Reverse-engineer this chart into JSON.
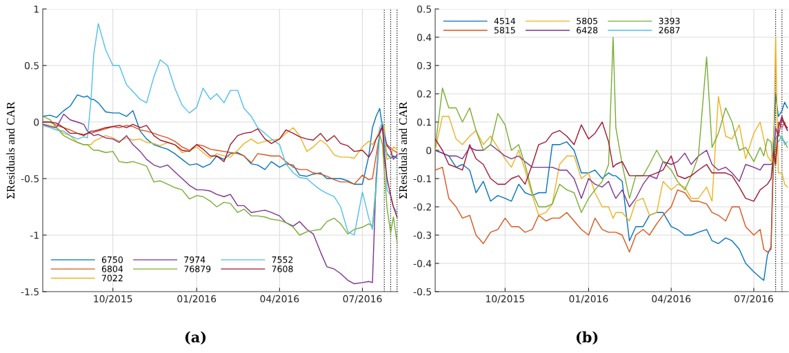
{
  "chart_data": [
    {
      "type": "line",
      "ylabel": "ΣResiduals and CAR",
      "annotations": [
        "(a)"
      ],
      "grid": true,
      "legend": "bottom left",
      "line_style": "solid",
      "marker": "none",
      "x": [
        "2015-07-16",
        "2015-07-24",
        "2015-07-31",
        "2015-08-08",
        "2015-08-15",
        "2015-08-23",
        "2015-08-30",
        "2015-09-03",
        "2015-09-07",
        "2015-09-10",
        "2015-09-15",
        "2015-09-23",
        "2015-10-01",
        "2015-10-08",
        "2015-10-16",
        "2015-10-23",
        "2015-10-31",
        "2015-11-07",
        "2015-11-15",
        "2015-11-22",
        "2015-11-30",
        "2015-12-08",
        "2015-12-16",
        "2015-12-24",
        "2016-01-01",
        "2016-01-08",
        "2016-01-16",
        "2016-01-23",
        "2016-01-31",
        "2016-02-07",
        "2016-02-15",
        "2016-02-22",
        "2016-03-01",
        "2016-03-08",
        "2016-03-16",
        "2016-03-23",
        "2016-04-01",
        "2016-04-08",
        "2016-04-16",
        "2016-04-23",
        "2016-05-01",
        "2016-05-08",
        "2016-05-16",
        "2016-05-23",
        "2016-05-31",
        "2016-06-07",
        "2016-06-15",
        "2016-06-22",
        "2016-07-01",
        "2016-07-08",
        "2016-07-12",
        "2016-07-16",
        "2016-07-20",
        "2016-07-23",
        "2016-07-25",
        "2016-07-28",
        "2016-08-01",
        "2016-08-04",
        "2016-08-08"
      ],
      "xlim": [
        "2015-07-16",
        "2016-08-09"
      ],
      "xticks": [
        {
          "value": "2015-10-01",
          "label": "10/2015"
        },
        {
          "value": "2016-01-01",
          "label": "01/2016"
        },
        {
          "value": "2016-04-01",
          "label": "04/2016"
        },
        {
          "value": "2016-07-01",
          "label": "07/2016"
        }
      ],
      "ylim": [
        -1.5,
        1
      ],
      "yticks": [
        -1.5,
        -1,
        -0.5,
        0,
        0.5,
        1
      ],
      "ref_lines": [
        {
          "axis": "x",
          "value": "2016-07-25",
          "color": "#000000",
          "line_style": "dotted"
        },
        {
          "axis": "x",
          "value": "2016-08-01",
          "color": "#000000",
          "line_style": "dotted"
        },
        {
          "axis": "x",
          "value": "2016-08-08",
          "color": "#000000",
          "line_style": "dotted"
        }
      ],
      "series": [
        {
          "name": "6750",
          "color": "#0072bd",
          "values": [
            0.05,
            0.06,
            0.04,
            0.1,
            0.14,
            0.24,
            0.22,
            0.23,
            0.2,
            0.2,
            0.17,
            0.09,
            0.08,
            0.08,
            0.05,
            0.1,
            -0.08,
            -0.15,
            -0.2,
            -0.22,
            -0.24,
            -0.28,
            -0.33,
            -0.38,
            -0.37,
            -0.4,
            -0.37,
            -0.3,
            -0.33,
            -0.28,
            -0.27,
            -0.3,
            -0.37,
            -0.38,
            -0.42,
            -0.35,
            -0.4,
            -0.37,
            -0.38,
            -0.47,
            -0.48,
            -0.46,
            -0.45,
            -0.5,
            -0.5,
            -0.5,
            -0.52,
            -0.55,
            -0.55,
            -0.3,
            -0.05,
            0.05,
            0.12,
            -0.05,
            -0.2,
            -0.28,
            -0.32,
            -0.3,
            -0.32
          ]
        },
        {
          "name": "6804",
          "color": "#d95319",
          "values": [
            0.0,
            0.0,
            -0.03,
            -0.05,
            -0.07,
            -0.1,
            -0.11,
            -0.1,
            -0.1,
            -0.09,
            -0.08,
            -0.06,
            -0.04,
            -0.05,
            -0.03,
            -0.04,
            -0.07,
            -0.08,
            -0.1,
            -0.12,
            -0.14,
            -0.17,
            -0.22,
            -0.25,
            -0.2,
            -0.21,
            -0.24,
            -0.25,
            -0.26,
            -0.27,
            -0.28,
            -0.3,
            -0.36,
            -0.28,
            -0.29,
            -0.3,
            -0.3,
            -0.35,
            -0.4,
            -0.42,
            -0.42,
            -0.45,
            -0.46,
            -0.48,
            -0.51,
            -0.53,
            -0.53,
            -0.55,
            -0.47,
            -0.51,
            -0.5,
            -0.3,
            -0.1,
            -0.05,
            -0.15,
            -0.2,
            -0.23,
            -0.25,
            -0.27
          ]
        },
        {
          "name": "7022",
          "color": "#edb120",
          "values": [
            -0.02,
            -0.03,
            -0.05,
            -0.1,
            -0.12,
            -0.18,
            -0.2,
            -0.2,
            -0.2,
            -0.17,
            -0.15,
            -0.12,
            -0.14,
            -0.17,
            -0.14,
            -0.16,
            -0.15,
            -0.18,
            -0.19,
            -0.21,
            -0.18,
            -0.2,
            -0.27,
            -0.25,
            -0.22,
            -0.27,
            -0.32,
            -0.28,
            -0.3,
            -0.31,
            -0.25,
            -0.19,
            -0.15,
            -0.19,
            -0.17,
            -0.16,
            -0.15,
            -0.1,
            -0.05,
            -0.12,
            -0.26,
            -0.22,
            -0.16,
            -0.2,
            -0.29,
            -0.31,
            -0.31,
            -0.32,
            -0.22,
            -0.17,
            -0.2,
            -0.15,
            -0.07,
            -0.05,
            -0.03,
            -0.33,
            -0.31,
            -0.22,
            -0.24
          ]
        },
        {
          "name": "7974",
          "color": "#7e2f8e",
          "values": [
            -0.02,
            -0.04,
            -0.05,
            0.07,
            0.02,
            0.0,
            -0.02,
            -0.08,
            -0.1,
            -0.12,
            -0.11,
            -0.14,
            -0.15,
            -0.18,
            -0.12,
            -0.2,
            -0.26,
            -0.33,
            -0.38,
            -0.4,
            -0.38,
            -0.44,
            -0.5,
            -0.56,
            -0.6,
            -0.6,
            -0.61,
            -0.64,
            -0.66,
            -0.64,
            -0.74,
            -0.74,
            -0.8,
            -0.79,
            -0.78,
            -0.8,
            -0.83,
            -0.89,
            -0.92,
            -0.88,
            -0.95,
            -0.99,
            -1.15,
            -1.28,
            -1.3,
            -1.34,
            -1.4,
            -1.43,
            -1.42,
            -1.41,
            -1.42,
            -0.5,
            -0.07,
            -0.05,
            -0.1,
            -0.21,
            -0.25,
            -0.33,
            -0.29
          ]
        },
        {
          "name": "76879",
          "color": "#77ac30",
          "values": [
            0.05,
            0.02,
            -0.05,
            -0.12,
            -0.15,
            -0.18,
            -0.2,
            -0.2,
            -0.23,
            -0.25,
            -0.25,
            -0.27,
            -0.26,
            -0.35,
            -0.36,
            -0.35,
            -0.37,
            -0.39,
            -0.53,
            -0.52,
            -0.55,
            -0.58,
            -0.6,
            -0.68,
            -0.65,
            -0.66,
            -0.7,
            -0.75,
            -0.71,
            -0.72,
            -0.8,
            -0.77,
            -0.83,
            -0.83,
            -0.84,
            -0.86,
            -0.87,
            -0.89,
            -0.93,
            -1.0,
            -0.97,
            -0.96,
            -0.95,
            -0.88,
            -0.85,
            -0.9,
            -0.99,
            -0.95,
            -0.93,
            -0.9,
            -0.92,
            -0.55,
            -0.11,
            -0.2,
            -0.43,
            -0.76,
            -0.98,
            -0.84,
            -1.06
          ]
        },
        {
          "name": "7552",
          "color": "#4dbeee",
          "values": [
            -0.03,
            -0.05,
            -0.07,
            -0.08,
            -0.12,
            -0.15,
            -0.13,
            -0.14,
            0.2,
            0.6,
            0.87,
            0.64,
            0.5,
            0.5,
            0.33,
            0.27,
            0.2,
            0.17,
            0.4,
            0.55,
            0.5,
            0.3,
            0.15,
            0.08,
            0.13,
            0.3,
            0.2,
            0.25,
            0.17,
            0.28,
            0.28,
            0.12,
            0.05,
            -0.05,
            -0.1,
            -0.15,
            -0.2,
            -0.37,
            -0.45,
            -0.49,
            -0.5,
            -0.55,
            -0.6,
            -0.63,
            -0.66,
            -0.75,
            -0.97,
            -1.0,
            -0.62,
            -0.85,
            -0.95,
            -0.6,
            -0.05,
            0.0,
            -0.1,
            -0.6,
            -0.65,
            -0.75,
            -0.8
          ]
        },
        {
          "name": "7608",
          "color": "#a2142f",
          "values": [
            0.0,
            0.0,
            -0.01,
            -0.05,
            -0.1,
            -0.1,
            -0.12,
            -0.1,
            -0.08,
            -0.08,
            -0.07,
            -0.05,
            -0.04,
            -0.03,
            -0.05,
            -0.02,
            -0.05,
            -0.03,
            -0.12,
            -0.16,
            -0.18,
            -0.2,
            -0.25,
            -0.26,
            -0.2,
            -0.24,
            -0.3,
            -0.3,
            -0.35,
            -0.2,
            -0.12,
            -0.1,
            -0.09,
            -0.06,
            -0.15,
            -0.19,
            -0.15,
            -0.07,
            -0.1,
            -0.13,
            -0.15,
            -0.16,
            -0.1,
            -0.17,
            -0.12,
            -0.19,
            -0.21,
            -0.26,
            -0.25,
            -0.31,
            -0.25,
            -0.15,
            -0.1,
            -0.03,
            -0.3,
            -0.5,
            -0.65,
            -0.75,
            -0.84
          ]
        }
      ]
    },
    {
      "type": "line",
      "ylabel": "ΣResiduals and CAR",
      "annotations": [
        "(b)"
      ],
      "grid": true,
      "legend": "top left",
      "line_style": "solid",
      "marker": "none",
      "x": [
        "2015-07-16",
        "2015-07-24",
        "2015-07-31",
        "2015-08-08",
        "2015-08-15",
        "2015-08-23",
        "2015-08-30",
        "2015-09-07",
        "2015-09-15",
        "2015-09-23",
        "2015-10-01",
        "2015-10-08",
        "2015-10-16",
        "2015-10-23",
        "2015-10-31",
        "2015-11-07",
        "2015-11-15",
        "2015-11-22",
        "2015-11-30",
        "2015-12-08",
        "2015-12-16",
        "2015-12-24",
        "2016-01-01",
        "2016-01-08",
        "2016-01-16",
        "2016-01-23",
        "2016-01-28",
        "2016-01-31",
        "2016-02-07",
        "2016-02-15",
        "2016-02-22",
        "2016-03-01",
        "2016-03-08",
        "2016-03-16",
        "2016-03-23",
        "2016-04-01",
        "2016-04-08",
        "2016-04-16",
        "2016-04-23",
        "2016-05-01",
        "2016-05-10",
        "2016-05-16",
        "2016-05-23",
        "2016-05-31",
        "2016-06-07",
        "2016-06-15",
        "2016-06-22",
        "2016-07-01",
        "2016-07-08",
        "2016-07-12",
        "2016-07-16",
        "2016-07-20",
        "2016-07-23",
        "2016-07-25",
        "2016-07-28",
        "2016-08-01",
        "2016-08-04",
        "2016-08-07"
      ],
      "xlim": [
        "2015-07-16",
        "2016-08-08"
      ],
      "xticks": [
        {
          "value": "2015-10-01",
          "label": "10/2015"
        },
        {
          "value": "2016-01-01",
          "label": "01/2016"
        },
        {
          "value": "2016-04-01",
          "label": "04/2016"
        },
        {
          "value": "2016-07-01",
          "label": "07/2016"
        }
      ],
      "ylim": [
        -0.5,
        0.5
      ],
      "yticks": [
        -0.5,
        -0.4,
        -0.3,
        -0.2,
        -0.1,
        0,
        0.1,
        0.2,
        0.3,
        0.4,
        0.5
      ],
      "ref_lines": [
        {
          "axis": "x",
          "value": "2016-07-25",
          "color": "#000000",
          "line_style": "dotted"
        },
        {
          "axis": "x",
          "value": "2016-08-01",
          "color": "#000000",
          "line_style": "dotted"
        }
      ],
      "series": [
        {
          "name": "4514",
          "color": "#0072bd",
          "values": [
            0.0,
            -0.01,
            -0.02,
            -0.06,
            -0.05,
            -0.07,
            -0.15,
            -0.11,
            -0.18,
            -0.16,
            -0.17,
            -0.18,
            -0.12,
            -0.15,
            -0.16,
            -0.15,
            -0.15,
            0.02,
            0.02,
            0.03,
            0.0,
            -0.08,
            -0.08,
            -0.07,
            -0.1,
            -0.08,
            -0.09,
            -0.09,
            -0.11,
            -0.32,
            -0.27,
            -0.27,
            -0.23,
            -0.22,
            -0.22,
            -0.27,
            -0.28,
            -0.3,
            -0.3,
            -0.29,
            -0.28,
            -0.32,
            -0.33,
            -0.31,
            -0.32,
            -0.35,
            -0.4,
            -0.43,
            -0.45,
            -0.46,
            -0.37,
            -0.34,
            0.05,
            0.2,
            0.12,
            0.14,
            0.17,
            0.15
          ]
        },
        {
          "name": "5815",
          "color": "#d95319",
          "values": [
            -0.07,
            -0.06,
            -0.17,
            -0.2,
            -0.24,
            -0.23,
            -0.3,
            -0.33,
            -0.29,
            -0.28,
            -0.24,
            -0.27,
            -0.27,
            -0.29,
            -0.28,
            -0.23,
            -0.25,
            -0.24,
            -0.24,
            -0.22,
            -0.25,
            -0.28,
            -0.3,
            -0.24,
            -0.28,
            -0.29,
            -0.29,
            -0.29,
            -0.3,
            -0.36,
            -0.3,
            -0.28,
            -0.3,
            -0.26,
            -0.23,
            -0.2,
            -0.14,
            -0.15,
            -0.18,
            -0.18,
            -0.19,
            -0.22,
            -0.23,
            -0.25,
            -0.2,
            -0.2,
            -0.27,
            -0.3,
            -0.28,
            -0.35,
            -0.36,
            -0.35,
            0.0,
            -0.05,
            0.1,
            0.08,
            0.1,
            0.07
          ]
        },
        {
          "name": "5805",
          "color": "#edb120",
          "values": [
            0.0,
            0.12,
            0.12,
            0.04,
            0.02,
            0.05,
            0.07,
            0.02,
            0.05,
            0.01,
            -0.03,
            -0.06,
            0.0,
            -0.07,
            -0.16,
            -0.23,
            -0.22,
            -0.19,
            -0.05,
            -0.02,
            -0.02,
            -0.1,
            -0.08,
            -0.15,
            -0.2,
            -0.2,
            -0.24,
            -0.22,
            -0.22,
            -0.25,
            -0.18,
            -0.17,
            -0.23,
            -0.22,
            -0.11,
            -0.14,
            -0.12,
            -0.13,
            -0.17,
            -0.17,
            -0.13,
            -0.18,
            0.19,
            0.05,
            0.04,
            0.09,
            -0.03,
            0.06,
            0.1,
            0.04,
            -0.02,
            -0.04,
            0.06,
            0.4,
            -0.08,
            -0.08,
            -0.12,
            -0.13
          ]
        },
        {
          "name": "6428",
          "color": "#7e2f8e",
          "values": [
            0.0,
            -0.01,
            -0.02,
            -0.02,
            -0.03,
            0.01,
            0.0,
            0.0,
            0.02,
            0.0,
            -0.02,
            -0.03,
            -0.02,
            -0.04,
            -0.06,
            -0.06,
            -0.06,
            -0.06,
            -0.07,
            -0.07,
            -0.1,
            -0.17,
            -0.1,
            -0.12,
            -0.13,
            -0.11,
            -0.15,
            -0.17,
            -0.14,
            -0.2,
            -0.17,
            -0.12,
            -0.09,
            -0.1,
            -0.04,
            -0.05,
            -0.04,
            -0.01,
            -0.05,
            -0.02,
            0.0,
            -0.05,
            -0.07,
            -0.06,
            -0.08,
            -0.11,
            -0.05,
            -0.06,
            -0.07,
            -0.05,
            -0.05,
            -0.05,
            -0.04,
            0.08,
            0.05,
            0.11,
            0.09,
            0.07
          ]
        },
        {
          "name": "3393",
          "color": "#77ac30",
          "values": [
            0.01,
            0.22,
            0.15,
            0.15,
            0.1,
            0.15,
            0.07,
            0.0,
            0.02,
            0.13,
            0.09,
            0.0,
            0.02,
            -0.05,
            -0.15,
            -0.2,
            -0.2,
            -0.19,
            -0.12,
            -0.14,
            -0.15,
            -0.22,
            -0.17,
            -0.14,
            -0.11,
            -0.05,
            0.4,
            0.08,
            -0.05,
            -0.17,
            -0.09,
            -0.09,
            -0.05,
            0.0,
            -0.04,
            -0.07,
            -0.11,
            -0.14,
            -0.09,
            -0.02,
            0.33,
            0.01,
            0.06,
            0.15,
            0.1,
            0.0,
            0.01,
            -0.04,
            0.01,
            -0.02,
            0.04,
            0.03,
            -0.06,
            0.04,
            0.06,
            0.04,
            0.03,
            0.01
          ]
        },
        {
          "name": "2687",
          "color": "#4dbeee",
          "values": [
            null,
            null,
            null,
            null,
            null,
            null,
            null,
            null,
            null,
            null,
            null,
            null,
            null,
            null,
            null,
            null,
            null,
            null,
            null,
            null,
            null,
            null,
            null,
            null,
            null,
            null,
            null,
            null,
            null,
            null,
            null,
            null,
            null,
            null,
            null,
            null,
            null,
            null,
            null,
            null,
            null,
            null,
            null,
            null,
            null,
            null,
            null,
            null,
            null,
            null,
            null,
            null,
            null,
            0.05,
            0.03,
            0.05,
            0.02,
            0.03
          ]
        },
        {
          "color": "#a2142f",
          "values": [
            0.04,
            0.0,
            -0.05,
            -0.06,
            -0.07,
            0.02,
            -0.03,
            -0.05,
            -0.1,
            -0.12,
            -0.12,
            -0.1,
            -0.09,
            -0.12,
            -0.05,
            0.02,
            0.03,
            0.06,
            0.07,
            0.05,
            0.02,
            0.09,
            0.04,
            0.06,
            0.1,
            0.03,
            -0.06,
            -0.05,
            -0.04,
            -0.09,
            -0.09,
            -0.09,
            -0.09,
            -0.08,
            -0.07,
            -0.02,
            -0.09,
            -0.1,
            -0.09,
            -0.07,
            -0.05,
            -0.08,
            -0.08,
            -0.08,
            -0.09,
            -0.13,
            -0.17,
            -0.18,
            -0.14,
            -0.13,
            -0.12,
            -0.1,
            0.0,
            -0.05,
            0.08,
            0.12,
            0.09,
            0.08
          ]
        }
      ]
    }
  ]
}
